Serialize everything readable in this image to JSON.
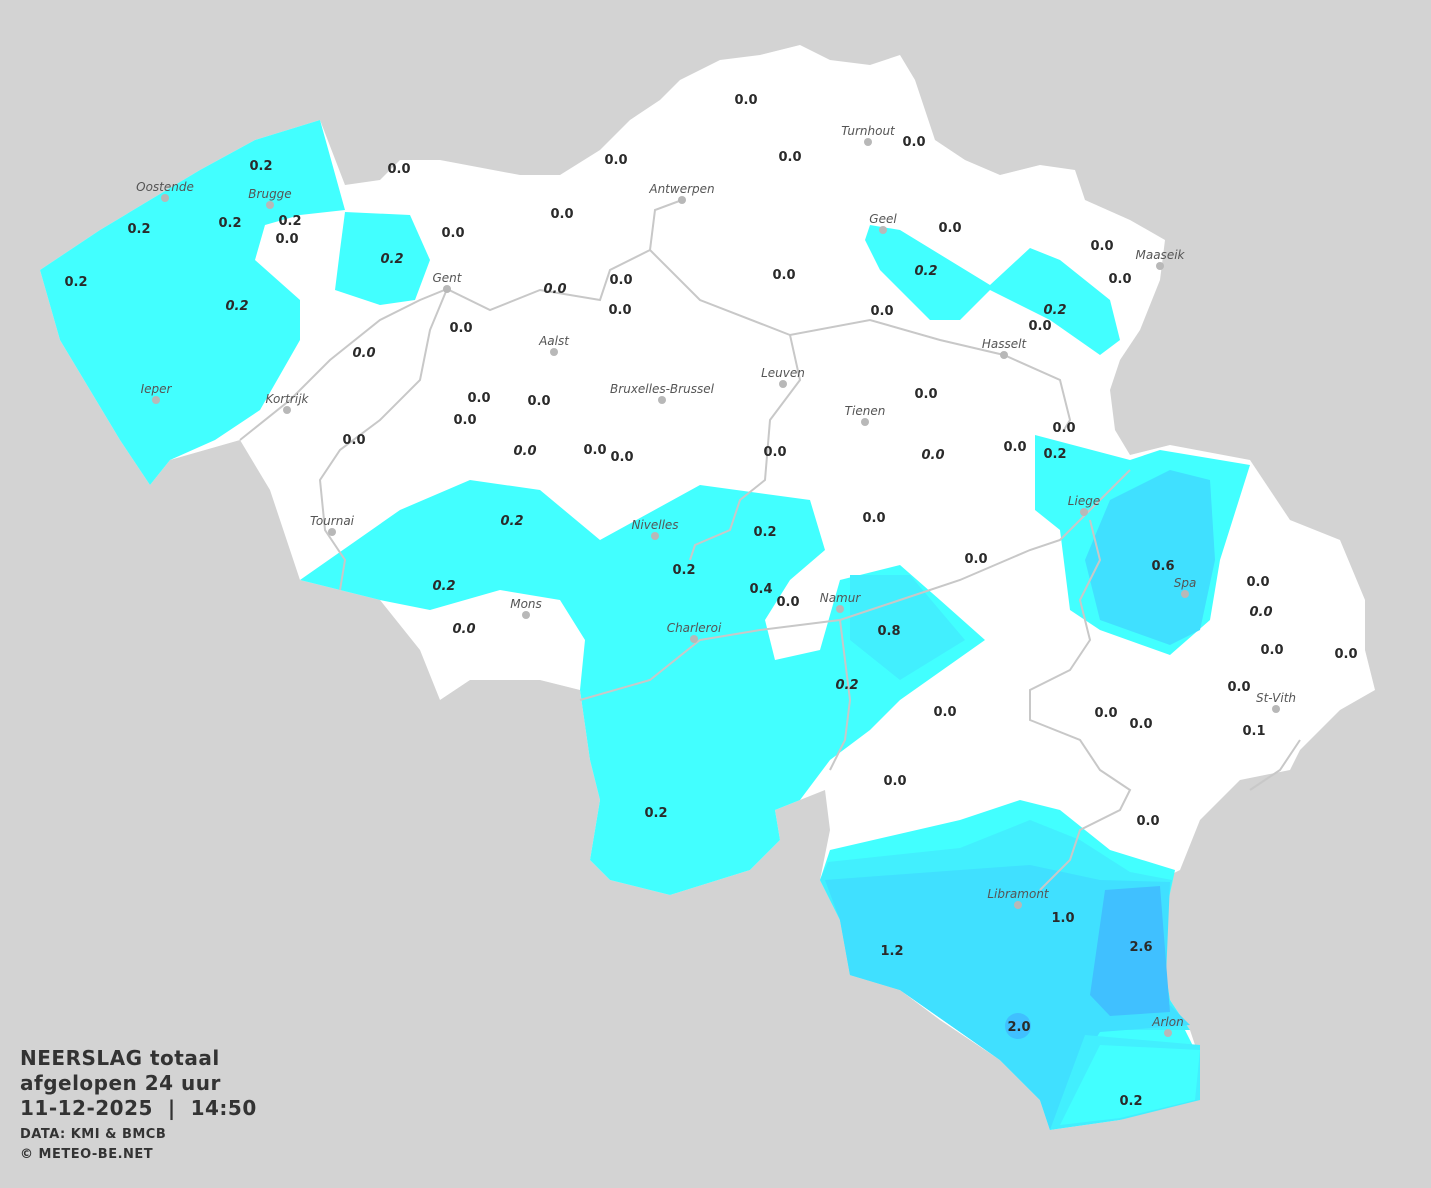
{
  "legend": {
    "title_line1": "NEERSLAG totaal",
    "title_line2": "afgelopen 24 uur",
    "datetime": "11-12-2025  |  14:50",
    "source": "DATA: KMI & BMCB",
    "copyright": "© METEO-BE.NET"
  },
  "colors": {
    "background": "#d3d3d3",
    "land": "#ffffff",
    "precip_0_2": "#42ffff",
    "precip_0_5": "#42effe",
    "precip_1": "#40e0ff",
    "precip_2": "#40c0ff",
    "rivers": "#c8c8c8"
  },
  "cities": [
    "Oostende",
    "Brugge",
    "Gent",
    "Antwerpen",
    "Turnhout",
    "Geel",
    "Maaseik",
    "Hasselt",
    "Aalst",
    "Leuven",
    "Bruxelles-Brussel",
    "Tienen",
    "Ieper",
    "Kortrijk",
    "Tournai",
    "Liege",
    "Spa",
    "Nivelles",
    "Mons",
    "Namur",
    "Charleroi",
    "St-Vith",
    "Libramont",
    "Arlon"
  ],
  "values": [
    {
      "v": "0.0"
    },
    {
      "v": "0.0"
    },
    {
      "v": "0.0"
    },
    {
      "v": "0.0"
    },
    {
      "v": "0.0"
    },
    {
      "v": "0.2"
    },
    {
      "v": "0.2"
    },
    {
      "v": "0.2"
    },
    {
      "v": "0.2"
    },
    {
      "v": "0.2"
    },
    {
      "v": "0.2",
      "italic": true
    },
    {
      "v": "0.0"
    },
    {
      "v": "0.2",
      "italic": true
    },
    {
      "v": "0.0"
    },
    {
      "v": "0.0"
    },
    {
      "v": "0.0"
    },
    {
      "v": "0.0",
      "italic": true
    },
    {
      "v": "0.0"
    },
    {
      "v": "0.0"
    },
    {
      "v": "0.0",
      "italic": true
    },
    {
      "v": "0.0"
    },
    {
      "v": "0.0"
    },
    {
      "v": "0.2",
      "italic": true
    },
    {
      "v": "0.2",
      "italic": true
    },
    {
      "v": "0.0"
    },
    {
      "v": "0.0"
    },
    {
      "v": "0.0"
    },
    {
      "v": "0.0"
    },
    {
      "v": "0.0"
    },
    {
      "v": "0.0"
    },
    {
      "v": "0.0"
    },
    {
      "v": "0.0"
    },
    {
      "v": "0.0",
      "italic": true
    },
    {
      "v": "0.0"
    },
    {
      "v": "0.0"
    },
    {
      "v": "0.0"
    },
    {
      "v": "0.0"
    },
    {
      "v": "0.0",
      "italic": true
    },
    {
      "v": "0.0"
    },
    {
      "v": "0.0"
    },
    {
      "v": "0.2"
    },
    {
      "v": "0.2",
      "italic": true
    },
    {
      "v": "0.2"
    },
    {
      "v": "0.0"
    },
    {
      "v": "0.2"
    },
    {
      "v": "0.2",
      "italic": true
    },
    {
      "v": "0.0",
      "italic": true
    },
    {
      "v": "0.4"
    },
    {
      "v": "0.0"
    },
    {
      "v": "0.0"
    },
    {
      "v": "0.8"
    },
    {
      "v": "0.2",
      "italic": true
    },
    {
      "v": "0.0"
    },
    {
      "v": "0.0"
    },
    {
      "v": "0.6"
    },
    {
      "v": "0.0"
    },
    {
      "v": "0.0",
      "italic": true
    },
    {
      "v": "0.0"
    },
    {
      "v": "0.0"
    },
    {
      "v": "0.0"
    },
    {
      "v": "0.0"
    },
    {
      "v": "0.0"
    },
    {
      "v": "0.1"
    },
    {
      "v": "0.0"
    },
    {
      "v": "0.2"
    },
    {
      "v": "1.0"
    },
    {
      "v": "1.2"
    },
    {
      "v": "2.6"
    },
    {
      "v": "2.0"
    },
    {
      "v": "0.2"
    }
  ]
}
